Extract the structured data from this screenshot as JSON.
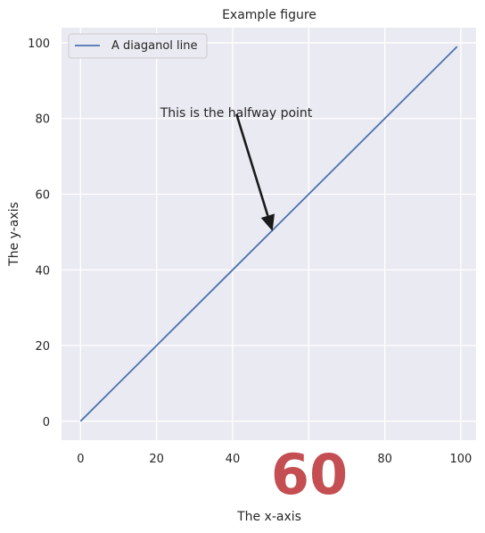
{
  "chart_data": {
    "type": "line",
    "title": "Example figure",
    "xlabel": "The x-axis",
    "ylabel": "The y-axis",
    "xlim": [
      -5,
      104
    ],
    "ylim": [
      -5,
      104
    ],
    "xticks": [
      0,
      20,
      40,
      60,
      80,
      100
    ],
    "yticks": [
      0,
      20,
      40,
      60,
      80,
      100
    ],
    "x_tick_labels": [
      "0",
      "20",
      "40",
      "",
      "80",
      "100"
    ],
    "y_tick_labels": [
      "0",
      "20",
      "40",
      "60",
      "80",
      "100"
    ],
    "overlay_label": "60",
    "grid": true,
    "legend_position": "top-left",
    "series": [
      {
        "name": "A diaganol line",
        "color": "#4c72b0",
        "x": [
          0,
          99
        ],
        "y": [
          0,
          99
        ]
      }
    ],
    "annotation": {
      "text": "This is the halfway point",
      "point": [
        50,
        50
      ],
      "text_position": [
        41,
        80
      ]
    }
  },
  "colors": {
    "plot_background": "#eaeaf2",
    "grid": "#ffffff",
    "text": "#262626",
    "overlay": "#c44e52",
    "arrow": "#1a1a1a"
  }
}
